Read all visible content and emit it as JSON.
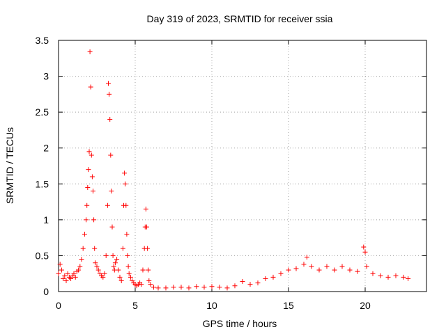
{
  "chart_data": {
    "type": "scatter",
    "title": "Day 319 of 2023, SRMTID for receiver ssia",
    "xlabel": "GPS time / hours",
    "ylabel": "SRMTID / TECUs",
    "xlim": [
      0,
      24
    ],
    "ylim": [
      0,
      3.5
    ],
    "xticks": [
      0,
      5,
      10,
      15,
      20
    ],
    "xtick_labels": [
      "0",
      "5",
      "10",
      "15",
      "20"
    ],
    "yticks": [
      0,
      0.5,
      1,
      1.5,
      2,
      2.5,
      3,
      3.5
    ],
    "ytick_labels": [
      "0",
      "0.5",
      "1",
      "1.5",
      "2",
      "2.5",
      "3",
      "3.5"
    ],
    "grid": true,
    "marker": "+",
    "color": "#ff0000",
    "series": [
      {
        "name": "ssia",
        "x": [
          0.0,
          0.1,
          0.2,
          0.3,
          0.4,
          0.5,
          0.6,
          0.7,
          0.8,
          0.9,
          1.0,
          1.1,
          1.2,
          1.3,
          1.4,
          1.5,
          1.6,
          1.7,
          1.8,
          1.85,
          1.9,
          1.95,
          2.0,
          2.05,
          2.1,
          2.15,
          2.2,
          2.25,
          2.3,
          2.35,
          2.4,
          2.5,
          2.6,
          2.7,
          2.8,
          2.9,
          3.0,
          3.1,
          3.2,
          3.25,
          3.3,
          3.35,
          3.4,
          3.45,
          3.5,
          3.55,
          3.6,
          3.65,
          3.7,
          3.8,
          3.9,
          4.0,
          4.1,
          4.2,
          4.25,
          4.3,
          4.35,
          4.4,
          4.45,
          4.5,
          4.55,
          4.6,
          4.7,
          4.8,
          4.9,
          5.0,
          5.1,
          5.2,
          5.3,
          5.4,
          5.5,
          5.6,
          5.65,
          5.7,
          5.75,
          5.8,
          5.85,
          5.9,
          6.0,
          6.2,
          6.5,
          7.0,
          7.5,
          8.0,
          8.5,
          9.0,
          9.5,
          10.0,
          10.5,
          11.0,
          11.5,
          12.0,
          12.5,
          13.0,
          13.5,
          14.0,
          14.5,
          15.0,
          15.5,
          16.0,
          16.2,
          16.5,
          17.0,
          17.5,
          18.0,
          18.5,
          19.0,
          19.5,
          19.9,
          20.0,
          20.1,
          20.5,
          21.0,
          21.5,
          22.0,
          22.5,
          22.8
        ],
        "y": [
          0.25,
          0.38,
          0.3,
          0.18,
          0.22,
          0.15,
          0.25,
          0.2,
          0.18,
          0.22,
          0.25,
          0.2,
          0.28,
          0.3,
          0.35,
          0.45,
          0.6,
          0.8,
          1.0,
          1.2,
          1.45,
          1.7,
          1.95,
          3.34,
          2.85,
          1.9,
          1.6,
          1.4,
          1.0,
          0.6,
          0.4,
          0.35,
          0.3,
          0.25,
          0.22,
          0.2,
          0.25,
          0.5,
          1.2,
          2.9,
          2.75,
          2.4,
          1.9,
          1.4,
          0.9,
          0.5,
          0.35,
          0.3,
          0.4,
          0.45,
          0.3,
          0.2,
          0.15,
          0.6,
          1.2,
          1.65,
          1.5,
          1.2,
          0.8,
          0.5,
          0.35,
          0.25,
          0.2,
          0.15,
          0.12,
          0.1,
          0.08,
          0.1,
          0.12,
          0.1,
          0.3,
          0.6,
          0.9,
          1.15,
          0.9,
          0.6,
          0.3,
          0.15,
          0.1,
          0.06,
          0.05,
          0.05,
          0.06,
          0.06,
          0.05,
          0.07,
          0.06,
          0.07,
          0.06,
          0.05,
          0.08,
          0.14,
          0.1,
          0.12,
          0.18,
          0.2,
          0.25,
          0.3,
          0.32,
          0.38,
          0.48,
          0.35,
          0.3,
          0.35,
          0.3,
          0.35,
          0.3,
          0.28,
          0.62,
          0.55,
          0.35,
          0.25,
          0.22,
          0.2,
          0.22,
          0.2,
          0.18
        ]
      }
    ]
  }
}
